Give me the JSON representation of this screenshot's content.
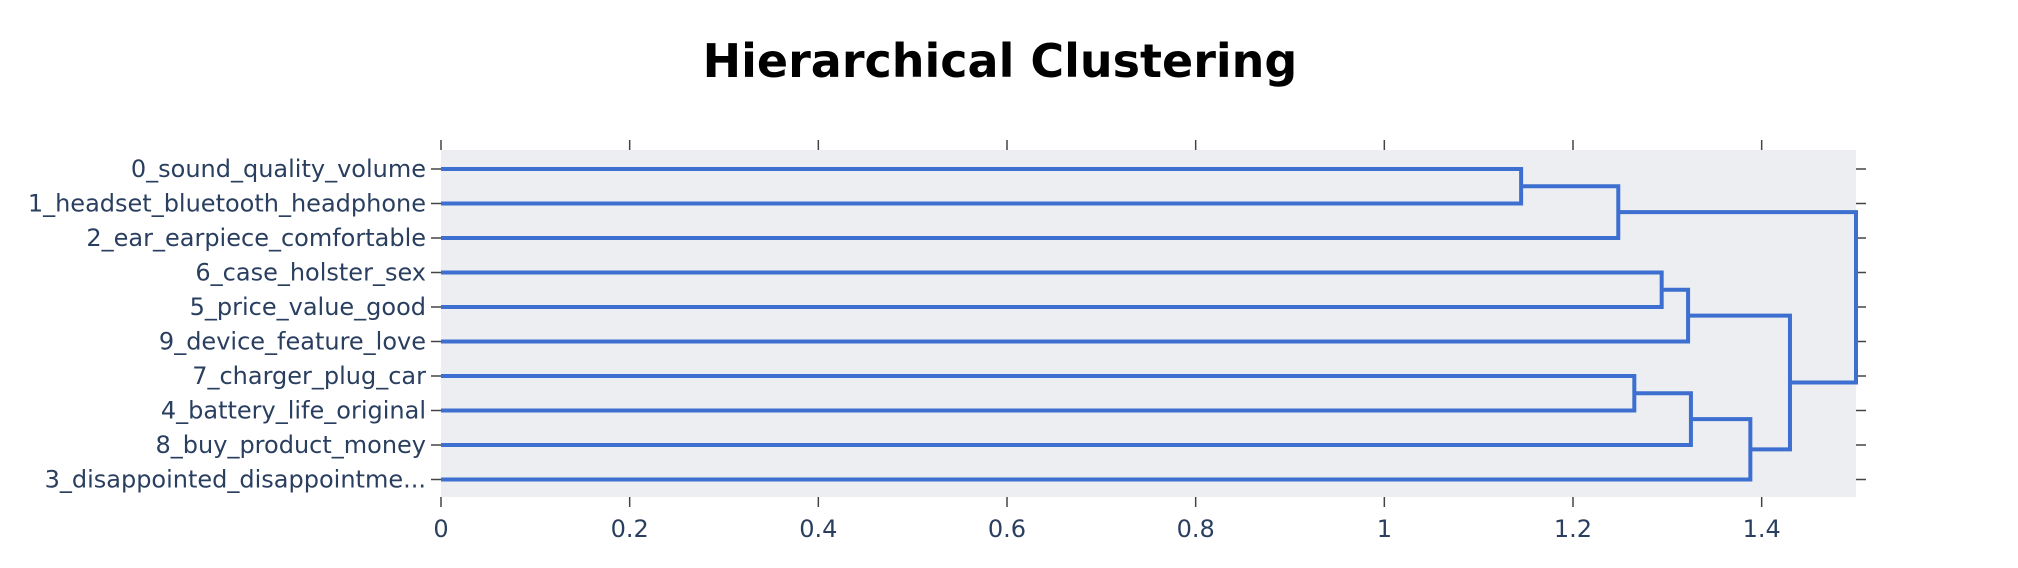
{
  "chart_data": {
    "type": "dendrogram",
    "title": "Hierarchical Clustering",
    "orientation": "horizontal",
    "xlim": [
      0,
      1.5
    ],
    "x_ticks": [
      0,
      0.2,
      0.4,
      0.6,
      0.8,
      1,
      1.2,
      1.4
    ],
    "x_tick_labels": [
      "0",
      "0.2",
      "0.4",
      "0.6",
      "0.8",
      "1",
      "1.2",
      "1.4"
    ],
    "leaves": [
      "0_sound_quality_volume",
      "1_headset_bluetooth_headphone",
      "2_ear_earpiece_comfortable",
      "6_case_holster_sex",
      "5_price_value_good",
      "9_device_feature_love",
      "7_charger_plug_car",
      "4_battery_life_original",
      "8_buy_product_money",
      "3_disappointed_disappointme..."
    ],
    "merges": [
      {
        "left": "leaf:0",
        "right": "leaf:1",
        "distance": 1.145
      },
      {
        "left": "node:0",
        "right": "leaf:2",
        "distance": 1.248
      },
      {
        "left": "leaf:3",
        "right": "leaf:4",
        "distance": 1.294
      },
      {
        "left": "node:2",
        "right": "leaf:5",
        "distance": 1.322
      },
      {
        "left": "leaf:6",
        "right": "leaf:7",
        "distance": 1.265
      },
      {
        "left": "node:4",
        "right": "leaf:8",
        "distance": 1.325
      },
      {
        "left": "node:5",
        "right": "leaf:9",
        "distance": 1.388
      },
      {
        "left": "node:3",
        "right": "node:6",
        "distance": 1.43
      },
      {
        "left": "node:1",
        "right": "node:7",
        "distance": 1.5
      }
    ],
    "line_color": "#3d6fd0",
    "plot_background": "#eceef1"
  }
}
